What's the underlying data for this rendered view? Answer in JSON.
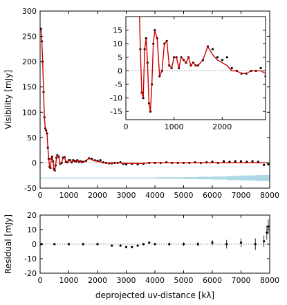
{
  "chart_data": [
    {
      "type": "scatter",
      "xlabel": "",
      "ylabel": "Visibility [mJy]",
      "xlim": [
        0,
        8000
      ],
      "ylim": [
        -50,
        300
      ],
      "xticks": [
        0,
        1000,
        2000,
        3000,
        4000,
        5000,
        6000,
        7000,
        8000
      ],
      "yticks": [
        -50,
        0,
        50,
        100,
        150,
        200,
        250,
        300
      ],
      "colors": {
        "data": "#000000",
        "model": "#cc0000",
        "imaginary": "#add8e6",
        "zero_line": "#888888"
      },
      "series": [
        {
          "role": "observed visibilities (black points)",
          "x": [
            30,
            60,
            90,
            120,
            150,
            180,
            210,
            240,
            270,
            300,
            330,
            360,
            390,
            420,
            450,
            480,
            510,
            540,
            570,
            600,
            650,
            700,
            750,
            800,
            850,
            900,
            950,
            1000,
            1050,
            1100,
            1150,
            1200,
            1250,
            1300,
            1350,
            1400,
            1450,
            1500,
            1600,
            1700,
            1800,
            1900,
            2000,
            2100,
            2200,
            2300,
            2400,
            2500,
            2600,
            2700,
            2800,
            2900,
            3000,
            3200,
            3400,
            3600,
            3800,
            4000,
            4200,
            4400,
            4600,
            4800,
            5000,
            5200,
            5400,
            5600,
            5800,
            6000,
            6200,
            6400,
            6600,
            6800,
            7000,
            7200,
            7400,
            7600,
            7800,
            7950
          ],
          "y": [
            265,
            240,
            200,
            140,
            90,
            68,
            64,
            58,
            30,
            8,
            -8,
            -10,
            8,
            12,
            3,
            -12,
            -15,
            -5,
            10,
            15,
            12,
            -2,
            0,
            10,
            11,
            2,
            1,
            5,
            5,
            1,
            5,
            4,
            3,
            5,
            2,
            3,
            2,
            2,
            4,
            9,
            8,
            5,
            4,
            5,
            1,
            0,
            -1,
            -1,
            0,
            0,
            1,
            -2,
            -3,
            -2,
            -3,
            -2,
            0,
            0,
            0,
            1,
            0,
            0,
            0,
            0,
            1,
            0,
            1,
            2,
            0,
            3,
            2,
            3,
            3,
            2,
            3,
            2,
            -4,
            -3
          ]
        },
        {
          "role": "model (red line)",
          "x": [
            30,
            60,
            90,
            120,
            150,
            180,
            210,
            240,
            270,
            300,
            330,
            360,
            390,
            420,
            450,
            480,
            510,
            540,
            570,
            600,
            650,
            700,
            750,
            800,
            850,
            900,
            950,
            1000,
            1050,
            1100,
            1150,
            1200,
            1250,
            1300,
            1350,
            1400,
            1450,
            1500,
            1600,
            1700,
            1800,
            1900,
            2000,
            2100,
            2200,
            2300,
            2400,
            2500,
            2600,
            2700,
            2800,
            2900,
            3000,
            3200,
            3400,
            3600,
            3800,
            4000,
            4200,
            4400,
            4600,
            4800,
            5000,
            5200,
            5400,
            5600,
            5800,
            6000,
            6200,
            6400,
            6600,
            6800,
            7000,
            7200,
            7400,
            7600,
            7800,
            7950
          ],
          "y": [
            265,
            240,
            200,
            140,
            90,
            68,
            64,
            58,
            30,
            8,
            -8,
            -10,
            8,
            12,
            3,
            -12,
            -15,
            -5,
            10,
            15,
            12,
            -2,
            0,
            10,
            11,
            2,
            1,
            5,
            5,
            1,
            5,
            4,
            3,
            5,
            2,
            3,
            2,
            2,
            4,
            9,
            6,
            4,
            3,
            2,
            0,
            0,
            -1,
            -1,
            0,
            0,
            0,
            -1,
            -1,
            -1,
            -1,
            -1,
            0,
            0,
            0,
            0,
            0,
            0,
            0,
            0,
            0,
            0,
            0,
            0,
            0,
            0,
            0,
            0,
            0,
            0,
            0,
            0,
            0,
            0
          ]
        },
        {
          "role": "imaginary part (light blue band)",
          "x": [
            0,
            1000,
            2000,
            3000,
            4000,
            5000,
            5500,
            6000,
            6500,
            7000,
            7500,
            8000
          ],
          "y": [
            -30,
            -30,
            -30,
            -30,
            -30,
            -30,
            -30,
            -30,
            -30,
            -30,
            -30,
            -30
          ],
          "spread": [
            1,
            1,
            1,
            1,
            1.5,
            2,
            2.5,
            3,
            4,
            5,
            6,
            8
          ]
        }
      ],
      "inset": {
        "xlim": [
          0,
          2900
        ],
        "ylim": [
          -18,
          20
        ],
        "xticks": [
          0,
          1000,
          2000
        ],
        "yticks": [
          -15,
          -10,
          -5,
          0,
          5,
          10,
          15
        ]
      }
    },
    {
      "type": "scatter",
      "xlabel": "deprojected uv-distance [kλ]",
      "ylabel": "Residual [mJy]",
      "xlim": [
        0,
        8000
      ],
      "ylim": [
        -20,
        20
      ],
      "xticks": [
        0,
        1000,
        2000,
        3000,
        4000,
        5000,
        6000,
        7000,
        8000
      ],
      "yticks": [
        -20,
        -10,
        0,
        10,
        20
      ],
      "series": [
        {
          "role": "residuals (black points with error bars)",
          "x": [
            50,
            500,
            1000,
            1500,
            2000,
            2500,
            2800,
            3000,
            3200,
            3400,
            3600,
            3800,
            4000,
            4500,
            5000,
            5500,
            6000,
            6500,
            7000,
            7500,
            7800,
            7900,
            7950
          ],
          "y": [
            0,
            0,
            0,
            0,
            0,
            -1,
            -1,
            -2,
            -2,
            -1,
            0,
            1,
            0,
            0,
            0,
            0,
            1,
            0,
            1,
            0,
            2,
            8,
            12
          ],
          "err": [
            0.5,
            0.5,
            0.5,
            0.5,
            0.5,
            0.5,
            0.5,
            0.5,
            0.5,
            0.5,
            0.5,
            0.6,
            0.7,
            1,
            1.2,
            1.5,
            2,
            3,
            3,
            4,
            4,
            5,
            5
          ]
        }
      ]
    }
  ]
}
